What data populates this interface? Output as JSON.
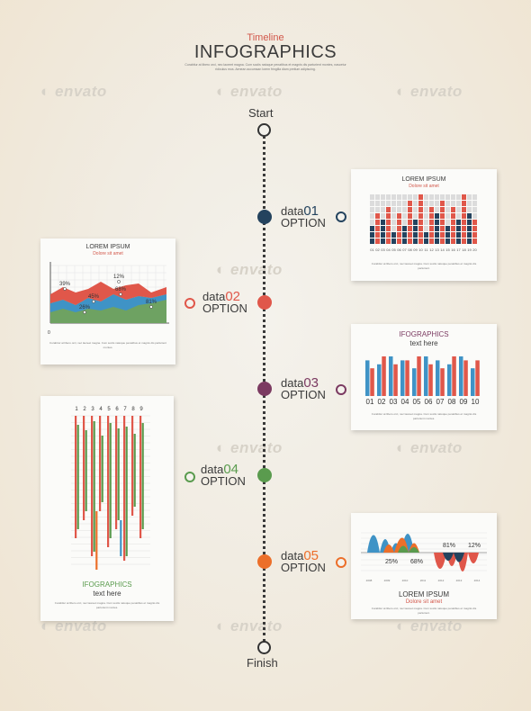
{
  "header": {
    "subtitle": "Timeline",
    "title": "INFOGRAPHICS",
    "lorem": "Curabitur at libero orci, nec laoreet magna. Cum sociis natoque penatibus et magnis dis parturient montes, nascetur ridiculus mus. Aenean accumsan lorem fringilla diam pretium adipiscing."
  },
  "watermark": "envato",
  "timeline": {
    "start_label": "Start",
    "finish_label": "Finish"
  },
  "options": [
    {
      "word": "data",
      "num": "01",
      "label": "OPTION",
      "color": "#24435e"
    },
    {
      "word": "data",
      "num": "02",
      "label": "OPTION",
      "color": "#e0574a"
    },
    {
      "word": "data",
      "num": "03",
      "label": "OPTION",
      "color": "#7b3a61"
    },
    {
      "word": "data",
      "num": "04",
      "label": "OPTION",
      "color": "#5a9b4e"
    },
    {
      "word": "data",
      "num": "05",
      "label": "OPTION",
      "color": "#ec6f2a"
    }
  ],
  "panel1": {
    "title": "LOREM IPSUM",
    "subtitle": "Dolore sit amet",
    "ticks": [
      "01",
      "02",
      "03",
      "04",
      "05",
      "06",
      "07",
      "08",
      "09",
      "10",
      "11",
      "12",
      "13",
      "14",
      "15",
      "16",
      "17",
      "18",
      "19",
      "20"
    ],
    "values": [
      3,
      5,
      4,
      6,
      2,
      5,
      3,
      7,
      4,
      8,
      2,
      6,
      5,
      7,
      3,
      6,
      4,
      8,
      5,
      4
    ],
    "colors": [
      "#24435e",
      "#e0574a",
      "#24435e",
      "#e0574a",
      "#24435e",
      "#e0574a",
      "#24435e",
      "#e0574a",
      "#24435e",
      "#e0574a",
      "#24435e",
      "#e0574a",
      "#24435e",
      "#e0574a",
      "#24435e",
      "#e0574a",
      "#24435e",
      "#e0574a",
      "#24435e",
      "#e0574a"
    ],
    "text": "Curabitur at libero orci, nec laoreet magna. Cum sociis natoque penatibus et magnis dis parturient."
  },
  "panel2": {
    "title": "LOREM IPSUM",
    "subtitle": "Dolore sit amet",
    "labels": [
      "39%",
      "45%",
      "12%",
      "68%",
      "26%",
      "81%"
    ],
    "ylabel": "0",
    "text": "Curabitur at libero orci, nec laoreet magna. Cum sociis natoque penatibus et magnis dis parturient montes."
  },
  "panel3": {
    "title": "IFOGRAPHICS",
    "subtitle": "text here",
    "ticks": [
      "01",
      "02",
      "03",
      "04",
      "05",
      "06",
      "07",
      "08",
      "09",
      "10"
    ],
    "pairs": [
      [
        9,
        7
      ],
      [
        8,
        10
      ],
      [
        10,
        8
      ],
      [
        9,
        9
      ],
      [
        7,
        10
      ],
      [
        10,
        8
      ],
      [
        9,
        7
      ],
      [
        8,
        10
      ],
      [
        10,
        9
      ],
      [
        7,
        9
      ]
    ],
    "colors": [
      "#3f93c6",
      "#e0574a"
    ],
    "text": "Curabitur at libero orci, nec laoreet magna. Cum sociis natoque penatibus et magnis dis parturient montes."
  },
  "panel4": {
    "ticks": [
      "1",
      "2",
      "3",
      "4",
      "5",
      "6",
      "7",
      "8",
      "9"
    ],
    "title": "IFOGRAPHICS",
    "subtitle": "text here",
    "text": "Curabitur at libero orci, nec laoreet magna. Cum sociis natoque penatibus et magnis dis parturient montes."
  },
  "panel5": {
    "labels": [
      "25%",
      "68%",
      "81%",
      "12%"
    ],
    "years": [
      "2008",
      "2009",
      "2010",
      "2011",
      "2012",
      "2013",
      "2014"
    ],
    "title": "LOREM IPSUM",
    "subtitle": "Dolore sit amet",
    "text": "Curabitur at libero orci, nec laoreet magna. Cum sociis natoque penatibus et magnis dis parturient."
  },
  "colors": {
    "red": "#e0574a",
    "navy": "#24435e",
    "blue": "#3f93c6",
    "green": "#5a9b4e",
    "orange": "#ec6f2a",
    "plum": "#7b3a61"
  }
}
